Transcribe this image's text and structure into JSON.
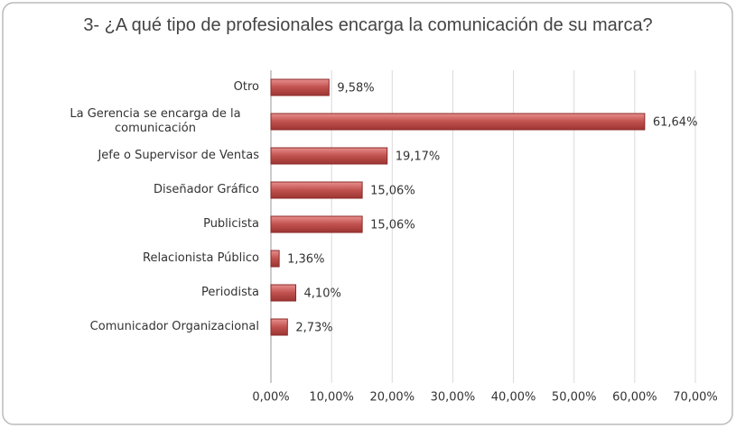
{
  "chart_data": {
    "type": "bar",
    "orientation": "horizontal",
    "title": "3- ¿A qué tipo de profesionales encarga la comunicación de su marca?",
    "categories": [
      "Otro",
      "La Gerencia se encarga de la comunicación",
      "Jefe o Supervisor de Ventas",
      "Diseñador Gráfico",
      "Publicista",
      "Relacionista Público",
      "Periodista",
      "Comunicador Organizacional"
    ],
    "values": [
      9.58,
      61.64,
      19.17,
      15.06,
      15.06,
      1.36,
      4.1,
      2.73
    ],
    "value_labels": [
      "9,58%",
      "61,64%",
      "19,17%",
      "15,06%",
      "15,06%",
      "1,36%",
      "4,10%",
      "2,73%"
    ],
    "color": "#c0504d",
    "xlim": [
      0,
      70
    ],
    "xticks": [
      {
        "value": 0,
        "label": "0,00%"
      },
      {
        "value": 10,
        "label": "10,00%"
      },
      {
        "value": 20,
        "label": "20,00%"
      },
      {
        "value": 30,
        "label": "30,00%"
      },
      {
        "value": 40,
        "label": "40,00%"
      },
      {
        "value": 50,
        "label": "50,00%"
      },
      {
        "value": 60,
        "label": "60,00%"
      },
      {
        "value": 70,
        "label": "70,00%"
      }
    ],
    "grid": true
  }
}
